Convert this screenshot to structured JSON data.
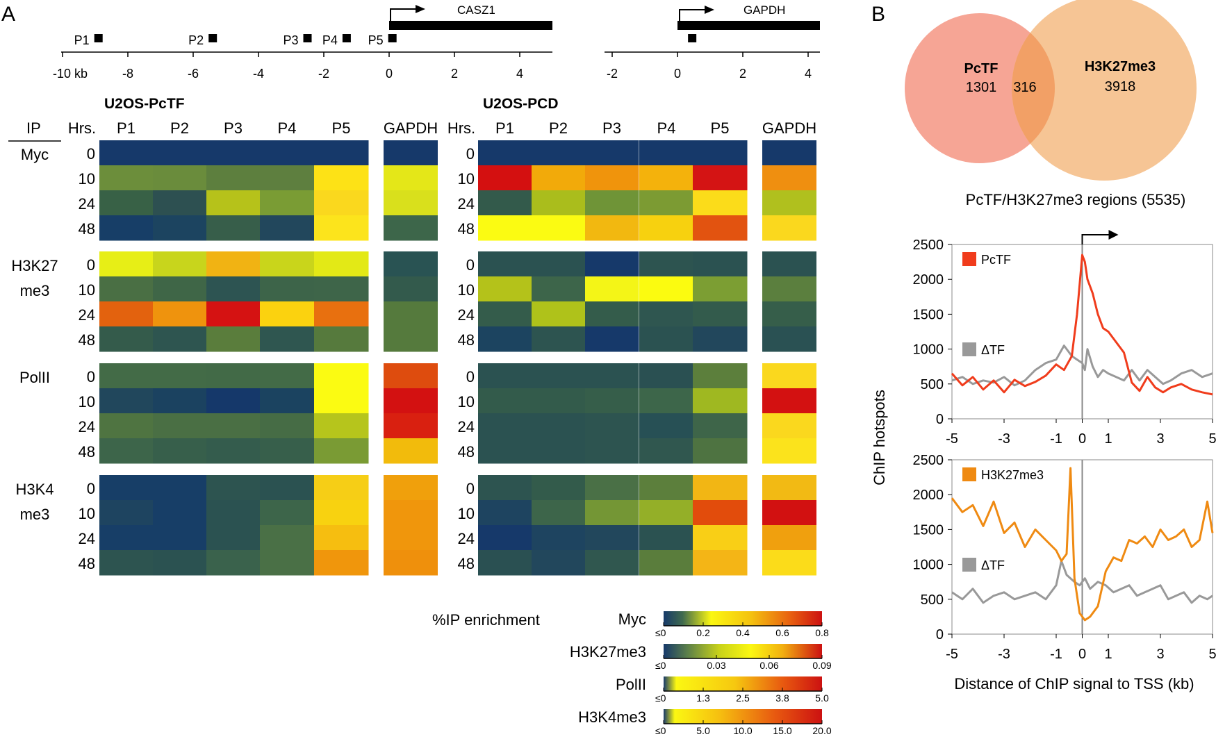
{
  "panel_a": {
    "label": "A",
    "genome_axis": {
      "casz1": {
        "gene": "CASZ1",
        "ticks": [
          "-10 kb",
          "-8",
          "-6",
          "-4",
          "-2",
          "0",
          "2",
          "4"
        ],
        "primers": [
          {
            "label": "P1",
            "kb": -8.9
          },
          {
            "label": "P2",
            "kb": -5.4
          },
          {
            "label": "P3",
            "kb": -2.5
          },
          {
            "label": "P4",
            "kb": -1.3
          },
          {
            "label": "P5",
            "kb": 0.1
          }
        ]
      },
      "gapdh": {
        "gene": "GAPDH",
        "ticks": [
          "-2",
          "0",
          "2",
          "4"
        ],
        "primer_kb": 0.45
      }
    },
    "headers": {
      "pctf": "U2OS-PcTF",
      "pcd": "U2OS-PCD",
      "ip": "IP",
      "hrs": "Hrs.",
      "cols": [
        "P1",
        "P2",
        "P3",
        "P4",
        "P5"
      ],
      "gapdh": "GAPDH"
    },
    "hours": [
      "0",
      "10",
      "24",
      "48"
    ],
    "groups": [
      {
        "ip": [
          "Myc"
        ],
        "pctf": [
          [
            "#16396a",
            "#16396a",
            "#16396a",
            "#16396a",
            "#16396a",
            "#16396a"
          ],
          [
            "#6c8e3b",
            "#6a8c3c",
            "#5d7f3e",
            "#5e7f3f",
            "#fde216",
            "#e4e718"
          ],
          [
            "#386146",
            "#2d5051",
            "#b6c21a",
            "#7a9c34",
            "#fad81e",
            "#d9e01c"
          ],
          [
            "#173e67",
            "#1c4460",
            "#375e4a",
            "#22475c",
            "#fce41c",
            "#3d664a"
          ]
        ],
        "pcd": [
          [
            "#16396a",
            "#16396a",
            "#16396a",
            "#16396a",
            "#16396a",
            "#16396a"
          ],
          [
            "#d41010",
            "#f2aa0a",
            "#f0940c",
            "#f4b20c",
            "#d41414",
            "#ef8f10"
          ],
          [
            "#335a4b",
            "#aabd1c",
            "#6f9437",
            "#7c9b33",
            "#fbdc1a",
            "#b0c01e"
          ],
          [
            "#fbfb12",
            "#fbfb12",
            "#f2b810",
            "#f7d10f",
            "#e25310",
            "#fad81e"
          ]
        ]
      },
      {
        "ip": [
          "H3K27",
          "me3"
        ],
        "pctf": [
          [
            "#e7ee16",
            "#c8d51c",
            "#f1b313",
            "#c9d51b",
            "#e3e916",
            "#295353"
          ],
          [
            "#4a6f44",
            "#3f6647",
            "#2d5452",
            "#3d6449",
            "#3e6549",
            "#335a4c"
          ],
          [
            "#e3620e",
            "#ef930d",
            "#d51212",
            "#fbd20f",
            "#e8700f",
            "#557a3d"
          ],
          [
            "#345b4b",
            "#2e5550",
            "#5a7d3c",
            "#2f5650",
            "#567a3d",
            "#557a3d"
          ]
        ],
        "pcd": [
          [
            "#2b5251",
            "#2b5251",
            "#16396a",
            "#2d5450",
            "#2b5251",
            "#2b5251"
          ],
          [
            "#b4c21a",
            "#3d654a",
            "#f4f517",
            "#fbfb10",
            "#7c9e33",
            "#5b7f3e"
          ],
          [
            "#345c4b",
            "#afc21a",
            "#345c4b",
            "#2f5650",
            "#335b4c",
            "#365e4a"
          ],
          [
            "#1c4460",
            "#2d5450",
            "#16396a",
            "#2b5251",
            "#22475c",
            "#2a5153"
          ]
        ]
      },
      {
        "ip": [
          "PolII"
        ],
        "pctf": [
          [
            "#436b47",
            "#436b47",
            "#426a47",
            "#436b47",
            "#fbfb12",
            "#de4c0e"
          ],
          [
            "#21475c",
            "#1b4260",
            "#15386a",
            "#1b4360",
            "#fbfb12",
            "#d31111"
          ],
          [
            "#4f7441",
            "#4a6f44",
            "#4a6f44",
            "#466c45",
            "#b6c51c",
            "#d92010"
          ],
          [
            "#3d654a",
            "#375f4b",
            "#345c4d",
            "#375f4b",
            "#7a9b34",
            "#f2bb0c"
          ]
        ],
        "pcd": [
          [
            "#2b5251",
            "#2b5251",
            "#2b5251",
            "#2a5052",
            "#5c7f3c",
            "#fad81e"
          ],
          [
            "#335b4b",
            "#335b4b",
            "#365e4a",
            "#3d664a",
            "#9fb821",
            "#d31111"
          ],
          [
            "#2b5251",
            "#2b5251",
            "#2d5450",
            "#275055",
            "#3e6549",
            "#fad81e"
          ],
          [
            "#2b5251",
            "#2b5251",
            "#2d5450",
            "#30574f",
            "#4e7341",
            "#fbe31c"
          ]
        ]
      },
      {
        "ip": [
          "H3K4",
          "me3"
        ],
        "pctf": [
          [
            "#173e67",
            "#173e67",
            "#2d5450",
            "#2b5251",
            "#f6ce16",
            "#f0a00c"
          ],
          [
            "#1e4460",
            "#173e67",
            "#2b5251",
            "#3d654a",
            "#f8d210",
            "#f0960c"
          ],
          [
            "#173e67",
            "#173e67",
            "#2b5251",
            "#4a7046",
            "#f6be10",
            "#f0960c"
          ],
          [
            "#2d5450",
            "#2b5251",
            "#3a624c",
            "#4a7046",
            "#f0960c",
            "#ef900c"
          ]
        ],
        "pcd": [
          [
            "#2d5450",
            "#335b4b",
            "#4a7046",
            "#5c7f3c",
            "#f2b614",
            "#f2ba14"
          ],
          [
            "#1e4460",
            "#3d654a",
            "#749635",
            "#94af28",
            "#e24c0c",
            "#d21111"
          ],
          [
            "#16396a",
            "#1e4460",
            "#22475c",
            "#2b5251",
            "#f9cf16",
            "#f0a00e"
          ],
          [
            "#2a5052",
            "#22475c",
            "#30574f",
            "#5a7d3c",
            "#f4b516",
            "#fbdc1a"
          ]
        ]
      }
    ],
    "legend": {
      "title": "%IP enrichment",
      "scales": [
        {
          "name": "Myc",
          "ticks": [
            "≤0",
            "0.2",
            "0.4",
            "0.6",
            "0.8"
          ]
        },
        {
          "name": "H3K27me3",
          "ticks": [
            "≤0",
            "0.03",
            "0.06",
            "0.09"
          ]
        },
        {
          "name": "PolII",
          "ticks": [
            "≤0",
            "1.3",
            "2.5",
            "3.8",
            "5.0"
          ]
        },
        {
          "name": "H3K4me3",
          "ticks": [
            "≤0",
            "5.0",
            "10.0",
            "15.0",
            "20.0"
          ]
        }
      ]
    }
  },
  "panel_b": {
    "label": "B",
    "venn": {
      "left": {
        "name": "PcTF",
        "count": "1301",
        "color": "#f6a595"
      },
      "right": {
        "name": "H3K27me3",
        "count": "3918",
        "color": "#f6c595"
      },
      "overlap": {
        "count": "316",
        "color": "#f2a066"
      }
    },
    "subtitle": "PcTF/H3K27me3 regions (5535)"
  },
  "chart_data": [
    {
      "type": "line",
      "title": "",
      "xlabel": "Distance of ChIP signal to TSS (kb)",
      "ylabel": "ChIP hotspots",
      "xlim": [
        -5,
        5
      ],
      "ylim": [
        0,
        2500
      ],
      "x_ticks": [
        "-5",
        "-3",
        "-1",
        "0",
        "1",
        "3",
        "5"
      ],
      "y_ticks": [
        "0",
        "500",
        "1000",
        "1500",
        "2000",
        "2500"
      ],
      "x": [
        -5.0,
        -4.6,
        -4.2,
        -3.8,
        -3.4,
        -3.0,
        -2.6,
        -2.2,
        -1.8,
        -1.4,
        -1.0,
        -0.7,
        -0.4,
        -0.2,
        0.0,
        0.1,
        0.2,
        0.4,
        0.6,
        0.8,
        1.0,
        1.3,
        1.6,
        1.9,
        2.2,
        2.5,
        2.8,
        3.1,
        3.4,
        3.8,
        4.2,
        4.6,
        5.0
      ],
      "series": [
        {
          "name": "PcTF",
          "color": "#f03c1c",
          "values": [
            650,
            480,
            600,
            420,
            550,
            380,
            560,
            470,
            530,
            620,
            780,
            700,
            900,
            1500,
            2350,
            2250,
            2000,
            1800,
            1500,
            1300,
            1250,
            1100,
            950,
            520,
            400,
            600,
            450,
            380,
            450,
            500,
            420,
            380,
            350
          ]
        },
        {
          "name": "ΔTF",
          "color": "#999999",
          "values": [
            550,
            600,
            500,
            550,
            520,
            600,
            480,
            550,
            700,
            800,
            850,
            1050,
            900,
            850,
            800,
            700,
            1000,
            750,
            600,
            700,
            650,
            600,
            550,
            700,
            550,
            700,
            600,
            500,
            550,
            650,
            700,
            600,
            650
          ]
        }
      ]
    },
    {
      "type": "line",
      "title": "",
      "xlabel": "Distance of ChIP signal to TSS (kb)",
      "ylabel": "ChIP hotspots",
      "xlim": [
        -5,
        5
      ],
      "ylim": [
        0,
        2500
      ],
      "x_ticks": [
        "-5",
        "-3",
        "-1",
        "0",
        "1",
        "3",
        "5"
      ],
      "y_ticks": [
        "0",
        "500",
        "1000",
        "1500",
        "2000",
        "2500"
      ],
      "x": [
        -5.0,
        -4.6,
        -4.2,
        -3.8,
        -3.4,
        -3.0,
        -2.6,
        -2.2,
        -1.8,
        -1.4,
        -1.0,
        -0.8,
        -0.6,
        -0.45,
        -0.3,
        -0.1,
        0.1,
        0.3,
        0.6,
        0.9,
        1.2,
        1.5,
        1.8,
        2.1,
        2.4,
        2.7,
        3.0,
        3.3,
        3.6,
        3.9,
        4.2,
        4.5,
        4.8,
        5.0
      ],
      "series": [
        {
          "name": "H3K27me3",
          "color": "#ef8a12",
          "values": [
            1950,
            1750,
            1850,
            1550,
            1900,
            1450,
            1600,
            1250,
            1500,
            1350,
            1200,
            1050,
            1150,
            2380,
            800,
            300,
            200,
            250,
            400,
            900,
            1100,
            1050,
            1350,
            1300,
            1400,
            1250,
            1500,
            1350,
            1400,
            1500,
            1250,
            1350,
            1900,
            1450
          ]
        },
        {
          "name": "ΔTF",
          "color": "#999999",
          "values": [
            600,
            500,
            650,
            450,
            550,
            600,
            500,
            550,
            600,
            500,
            700,
            1050,
            850,
            800,
            750,
            700,
            800,
            650,
            750,
            700,
            600,
            650,
            700,
            550,
            600,
            650,
            700,
            500,
            550,
            600,
            450,
            550,
            500,
            550
          ]
        }
      ]
    }
  ]
}
